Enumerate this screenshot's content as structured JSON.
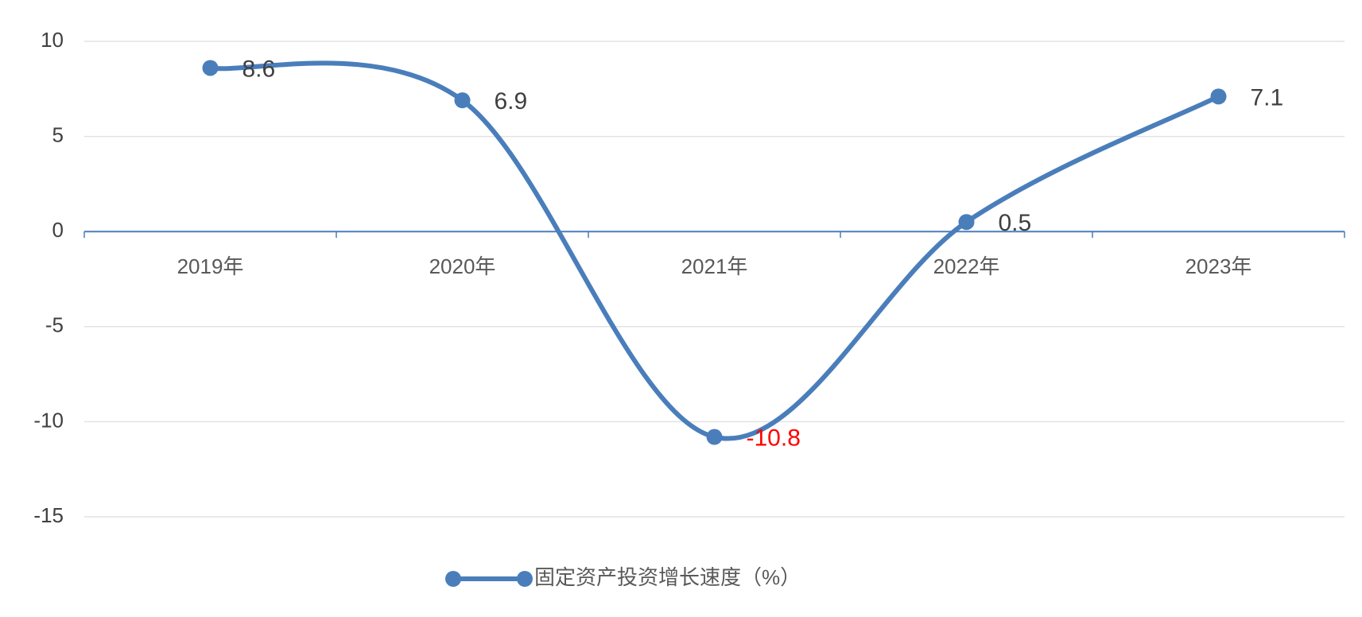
{
  "chart_data": {
    "type": "line",
    "categories": [
      "2019年",
      "2020年",
      "2021年",
      "2022年",
      "2023年"
    ],
    "series": [
      {
        "name": "固定资产投资增长速度（%）",
        "color": "#4a7ebb",
        "values": [
          8.6,
          6.9,
          -10.8,
          0.5,
          7.1
        ],
        "value_label_colors": [
          "#404040",
          "#404040",
          "#ff0000",
          "#404040",
          "#404040"
        ]
      }
    ],
    "ylim": [
      -15,
      10
    ],
    "yticks": [
      10,
      5,
      0,
      -5,
      -10,
      -15
    ],
    "grid": true,
    "smooth": true,
    "legend": "bottom"
  }
}
